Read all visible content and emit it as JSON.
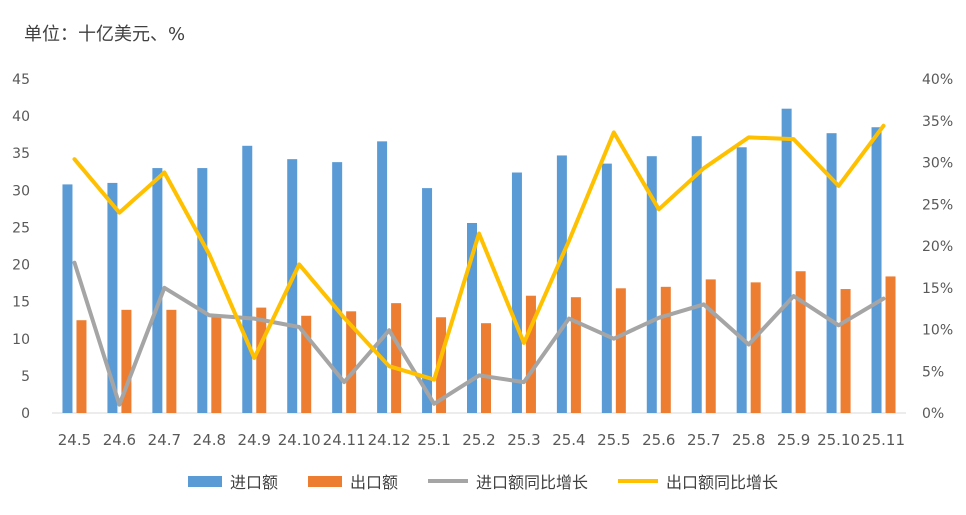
{
  "unit": "单位：十亿美元、%",
  "colors": {
    "import_bar": "#5B9BD5",
    "export_bar": "#ED7D31",
    "import_yoy": "#A5A5A5",
    "export_yoy": "#FFC000",
    "axis": "#D9D9D9",
    "text": "#595959"
  },
  "legend": {
    "import": "进口额",
    "export": "出口额",
    "import_yoy": "进口额同比增长",
    "export_yoy": "出口额同比增长"
  },
  "chart_data": {
    "type": "bar",
    "categories": [
      "24.5",
      "24.6",
      "24.7",
      "24.8",
      "24.9",
      "24.10",
      "24.11",
      "24.12",
      "25.1",
      "25.2",
      "25.3",
      "25.4",
      "25.5",
      "25.6",
      "25.7",
      "25.8",
      "25.9",
      "25.10",
      "25.11"
    ],
    "series": [
      {
        "name": "进口额",
        "type": "bar",
        "axis": "left",
        "values": [
          30.8,
          31.0,
          33.0,
          33.0,
          36.0,
          34.2,
          33.8,
          36.6,
          30.3,
          25.6,
          32.4,
          34.7,
          33.6,
          34.6,
          37.3,
          35.8,
          41.0,
          37.7,
          38.5
        ]
      },
      {
        "name": "出口额",
        "type": "bar",
        "axis": "left",
        "values": [
          12.5,
          13.9,
          13.9,
          12.9,
          14.2,
          13.1,
          13.7,
          14.8,
          12.9,
          12.1,
          15.8,
          15.6,
          16.8,
          17.0,
          18.0,
          17.6,
          19.1,
          16.7,
          18.4
        ]
      },
      {
        "name": "进口额同比增长",
        "type": "line",
        "axis": "right",
        "values": [
          18.0,
          1.0,
          15.0,
          11.7,
          11.3,
          10.3,
          3.7,
          9.9,
          1.1,
          4.5,
          3.7,
          11.3,
          8.9,
          11.4,
          13.0,
          8.2,
          14.0,
          10.5,
          13.7
        ]
      },
      {
        "name": "出口额同比增长",
        "type": "line",
        "axis": "right",
        "values": [
          30.4,
          24.0,
          28.8,
          19.0,
          6.6,
          17.8,
          11.4,
          5.6,
          4.0,
          21.5,
          8.4,
          20.6,
          33.6,
          24.4,
          29.3,
          33.0,
          32.8,
          27.2,
          34.4
        ]
      }
    ],
    "y_left": {
      "min": 0,
      "max": 45,
      "step": 5,
      "ticks": [
        "0",
        "5",
        "10",
        "15",
        "20",
        "25",
        "30",
        "35",
        "40",
        "45"
      ]
    },
    "y_right": {
      "min": 0,
      "max": 40,
      "step": 5,
      "ticks": [
        "0%",
        "5%",
        "10%",
        "15%",
        "20%",
        "25%",
        "30%",
        "35%",
        "40%"
      ]
    },
    "grid": false,
    "legend_position": "bottom"
  }
}
